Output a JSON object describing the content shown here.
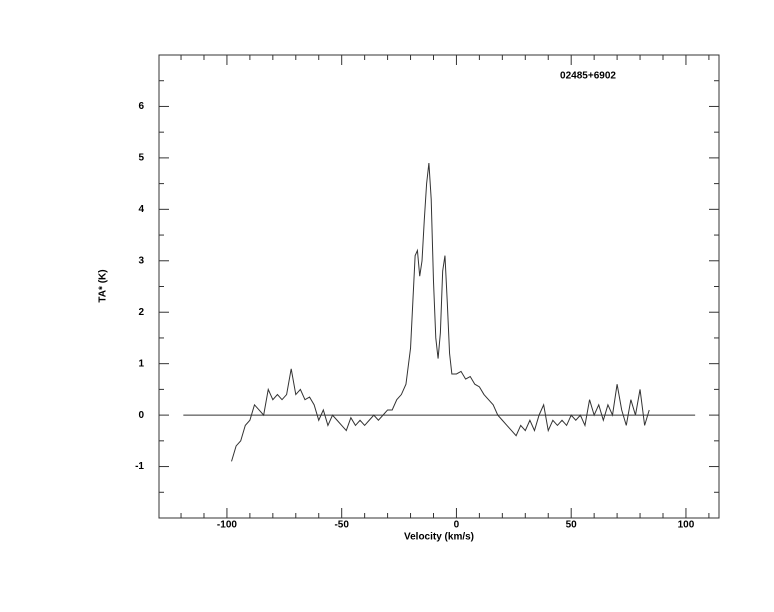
{
  "chart_data": {
    "type": "line",
    "annotation": "02485+6902",
    "xlabel": "Velocity (km/s)",
    "ylabel": "TA* (K)",
    "xlim": [
      -129.6,
      114.4
    ],
    "ylim": [
      -2,
      7
    ],
    "xticks": [
      -100,
      -50,
      0,
      50,
      100
    ],
    "yticks": [
      -1,
      0,
      1,
      2,
      3,
      4,
      5,
      6
    ],
    "xminorticks": [
      -120,
      -110,
      -90,
      -80,
      -70,
      -60,
      -40,
      -30,
      -20,
      -10,
      10,
      20,
      30,
      40,
      60,
      70,
      80,
      90,
      110
    ],
    "yminorticks": [
      -1.5,
      -0.5,
      0.5,
      1.5,
      2.5,
      3.5,
      4.5,
      5.5,
      6.5
    ],
    "baseline": {
      "value": 0,
      "xlim": [
        -119,
        104
      ]
    },
    "color": "#333333",
    "x": [
      -98,
      -96,
      -94,
      -92,
      -90,
      -88,
      -86,
      -84,
      -82,
      -80,
      -78,
      -76,
      -74,
      -72,
      -70,
      -68,
      -66,
      -64,
      -62,
      -60,
      -58,
      -56,
      -54,
      -52,
      -50,
      -48,
      -46,
      -44,
      -42,
      -40,
      -38,
      -36,
      -34,
      -32,
      -30,
      -28,
      -26,
      -24,
      -22,
      -20,
      -19,
      -18,
      -17,
      -16,
      -15,
      -14,
      -13,
      -12,
      -11,
      -10,
      -9,
      -8,
      -7,
      -6,
      -5,
      -4,
      -3,
      -2,
      0,
      2,
      4,
      6,
      8,
      10,
      12,
      14,
      16,
      18,
      20,
      22,
      24,
      26,
      28,
      30,
      32,
      34,
      36,
      38,
      40,
      42,
      44,
      46,
      48,
      50,
      52,
      54,
      56,
      58,
      60,
      62,
      64,
      66,
      68,
      70,
      72,
      74,
      76,
      78,
      80,
      82,
      84
    ],
    "values": [
      -0.9,
      -0.6,
      -0.5,
      -0.2,
      -0.1,
      0.2,
      0.1,
      0.0,
      0.5,
      0.3,
      0.4,
      0.3,
      0.4,
      0.9,
      0.4,
      0.5,
      0.3,
      0.35,
      0.2,
      -0.1,
      0.1,
      -0.2,
      0.0,
      -0.1,
      -0.2,
      -0.3,
      -0.05,
      -0.2,
      -0.1,
      -0.2,
      -0.1,
      0.0,
      -0.1,
      0.0,
      0.1,
      0.1,
      0.3,
      0.4,
      0.6,
      1.3,
      2.2,
      3.1,
      3.2,
      2.7,
      3.0,
      3.8,
      4.5,
      4.9,
      4.2,
      2.6,
      1.5,
      1.1,
      1.6,
      2.8,
      3.1,
      2.2,
      1.2,
      0.8,
      0.8,
      0.85,
      0.7,
      0.75,
      0.6,
      0.55,
      0.4,
      0.3,
      0.2,
      0.0,
      -0.1,
      -0.2,
      -0.3,
      -0.4,
      -0.2,
      -0.3,
      -0.1,
      -0.3,
      0.0,
      0.2,
      -0.3,
      -0.1,
      -0.2,
      -0.1,
      -0.2,
      0.0,
      -0.1,
      0.0,
      -0.2,
      0.3,
      0.0,
      0.2,
      -0.1,
      0.2,
      0.0,
      0.6,
      0.1,
      -0.2,
      0.3,
      0.0,
      0.5,
      -0.2,
      0.1
    ]
  }
}
